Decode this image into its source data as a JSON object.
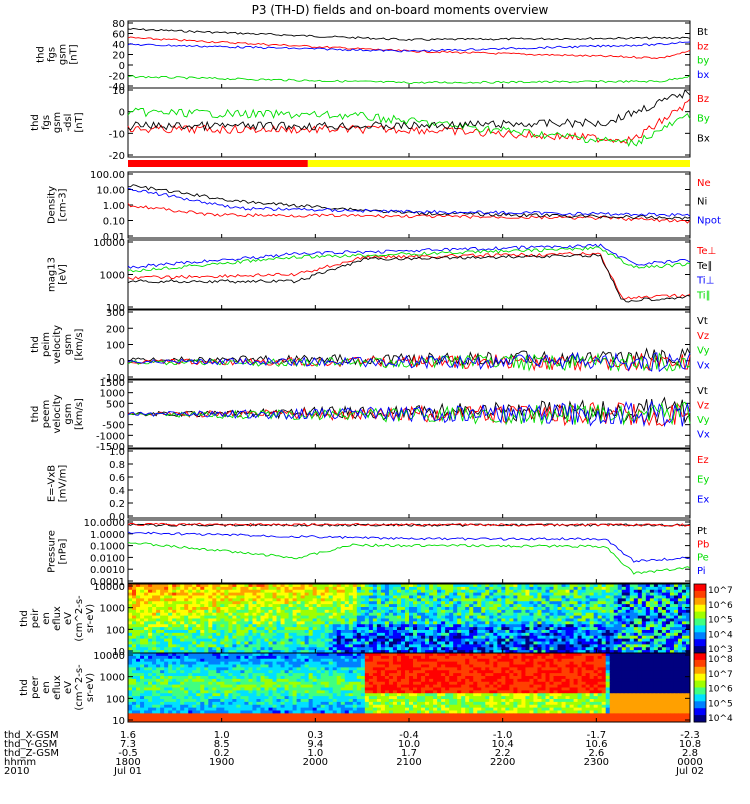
{
  "title": "P3 (TH-D) fields and on-board moments overview",
  "colors": {
    "black": "#000000",
    "red": "#ff0000",
    "green": "#00dd00",
    "blue": "#0000ff",
    "yellow": "#ffff00"
  },
  "chart_data": [
    {
      "type": "line",
      "panel": "fgs_gsm",
      "ylabel": [
        "thd",
        "fgs",
        "gsm",
        "[nT]"
      ],
      "ylim": [
        -40,
        80
      ],
      "yticks": [
        "80",
        "60",
        "40",
        "20",
        "0",
        "-20",
        "-40"
      ],
      "series": [
        {
          "name": "Bt",
          "color": "black"
        },
        {
          "name": "bz",
          "color": "red"
        },
        {
          "name": "by",
          "color": "green"
        },
        {
          "name": "bx",
          "color": "blue"
        }
      ]
    },
    {
      "type": "line",
      "panel": "fgs_dsl",
      "ylabel": [
        "thd",
        "fgs",
        "gsm",
        "-dsl",
        "[nT]"
      ],
      "ylim": [
        -25,
        20
      ],
      "yticks": [
        "10",
        "0",
        "-10",
        "-20"
      ],
      "series": [
        {
          "name": "Bz",
          "color": "red"
        },
        {
          "name": "By",
          "color": "green"
        },
        {
          "name": "Bx",
          "color": "black"
        }
      ]
    },
    {
      "type": "bar",
      "panel": "mode_bar",
      "segments": [
        {
          "color": "red",
          "from": 0,
          "to": 0.32
        },
        {
          "color": "yellow",
          "from": 0.32,
          "to": 1
        }
      ]
    },
    {
      "type": "line",
      "panel": "density",
      "ylabel": [
        "Density",
        "[cm-3]"
      ],
      "scale": "log",
      "ylim": [
        0.01,
        100
      ],
      "yticks": [
        "100.00",
        "10.00",
        "1.00",
        "0.10",
        "0.01"
      ],
      "series": [
        {
          "name": "Ne",
          "color": "red"
        },
        {
          "name": "Ni",
          "color": "black"
        },
        {
          "name": "Npot",
          "color": "blue"
        }
      ]
    },
    {
      "type": "line",
      "panel": "temperature",
      "ylabel": [
        "mag13",
        "[eV]"
      ],
      "scale": "log",
      "ylim": [
        30,
        10000
      ],
      "yticks": [
        "10000",
        "1000",
        "100"
      ],
      "series": [
        {
          "name": "Te⊥",
          "color": "red"
        },
        {
          "name": "Te∥",
          "color": "black"
        },
        {
          "name": "Ti⊥",
          "color": "blue"
        },
        {
          "name": "Ti∥",
          "color": "green"
        }
      ]
    },
    {
      "type": "line",
      "panel": "peim_velocity",
      "ylabel": [
        "thd",
        "peim",
        "velocity",
        "gsm",
        "[km/s]"
      ],
      "ylim": [
        -100,
        300
      ],
      "yticks": [
        "300",
        "200",
        "100",
        "0",
        "-100"
      ],
      "series": [
        {
          "name": "Vt",
          "color": "black"
        },
        {
          "name": "Vz",
          "color": "red"
        },
        {
          "name": "Vy",
          "color": "green"
        },
        {
          "name": "Vx",
          "color": "blue"
        }
      ]
    },
    {
      "type": "line",
      "panel": "peem_velocity",
      "ylabel": [
        "thd",
        "peem",
        "velocity",
        "gsm",
        "[km/s]"
      ],
      "ylim": [
        -1500,
        1500
      ],
      "yticks": [
        "1500",
        "1000",
        "500",
        "0",
        "-500",
        "-1000",
        "-1500"
      ],
      "series": [
        {
          "name": "Vt",
          "color": "black"
        },
        {
          "name": "Vz",
          "color": "red"
        },
        {
          "name": "Vy",
          "color": "green"
        },
        {
          "name": "Vx",
          "color": "blue"
        }
      ]
    },
    {
      "type": "line",
      "panel": "efield",
      "ylabel": [
        "E=-VxB",
        "[mV/m]"
      ],
      "ylim": [
        0,
        1
      ],
      "yticks": [
        "1.0",
        "0.8",
        "0.6",
        "0.4",
        "0.2",
        "0.0"
      ],
      "series": [
        {
          "name": "Ez",
          "color": "red"
        },
        {
          "name": "Ey",
          "color": "green"
        },
        {
          "name": "Ex",
          "color": "blue"
        }
      ]
    },
    {
      "type": "line",
      "panel": "pressure",
      "ylabel": [
        "Pressure",
        "[nPa]"
      ],
      "scale": "log",
      "ylim": [
        0.0001,
        10
      ],
      "yticks": [
        "10.0000",
        "1.0000",
        "0.1000",
        "0.0100",
        "0.0010",
        "0.0001"
      ],
      "series": [
        {
          "name": "Pt",
          "color": "black"
        },
        {
          "name": "Pb",
          "color": "red"
        },
        {
          "name": "Pe",
          "color": "green"
        },
        {
          "name": "Pi",
          "color": "blue"
        }
      ]
    },
    {
      "type": "heatmap",
      "panel": "peir_spec",
      "ylabel": [
        "thd",
        "peir",
        "en",
        "eflux",
        "eV",
        "(cm^2-s-",
        "sr-eV)"
      ],
      "yticks": [
        "10000",
        "1000",
        "100",
        "10"
      ],
      "colorbar": [
        "10^7",
        "10^6",
        "10^5",
        "10^4",
        "10^3"
      ]
    },
    {
      "type": "heatmap",
      "panel": "peer_spec",
      "ylabel": [
        "thd",
        "peer",
        "en",
        "eflux",
        "eV",
        "(cm^2-s-",
        "sr-eV)"
      ],
      "yticks": [
        "10000",
        "1000",
        "100",
        "10"
      ],
      "colorbar": [
        "10^8",
        "10^7",
        "10^6",
        "10^5",
        "10^4"
      ]
    }
  ],
  "xaxis": {
    "rows": [
      {
        "label": "thd_X-GSM",
        "values": [
          "1.6",
          "1.0",
          "0.3",
          "-0.4",
          "-1.0",
          "-1.7",
          "-2.3"
        ]
      },
      {
        "label": "thd_Y-GSM",
        "values": [
          "7.3",
          "8.5",
          "9.4",
          "10.0",
          "10.4",
          "10.6",
          "10.8"
        ]
      },
      {
        "label": "thd_Z-GSM",
        "values": [
          "-0.5",
          "0.2",
          "1.0",
          "1.7",
          "2.2",
          "2.6",
          "2.8"
        ]
      },
      {
        "label": "hhmm",
        "values": [
          "1800",
          "1900",
          "2000",
          "2100",
          "2200",
          "2300",
          "0000"
        ]
      },
      {
        "label": "2010",
        "values": [
          "Jul 01",
          "",
          "",
          "",
          "",
          "",
          "Jul 02"
        ]
      }
    ]
  }
}
